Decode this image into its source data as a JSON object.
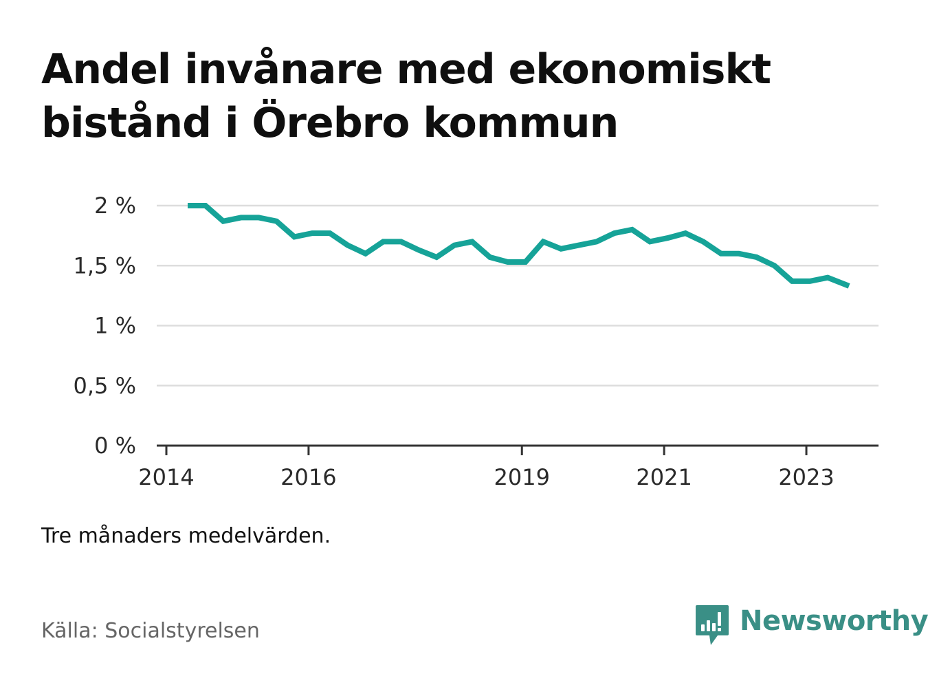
{
  "title": "Andel invånare med ekonomiskt bistånd i Örebro kommun",
  "note": "Tre månaders medelvärden.",
  "source": "Källa: Socialstyrelsen",
  "brand": {
    "name": "Newsworthy",
    "icon": "bar-chart-speech-bubble-icon",
    "color": "#3a8f86"
  },
  "chart_data": {
    "type": "line",
    "title": "Andel invånare med ekonomiskt bistånd i Örebro kommun",
    "xlabel": "",
    "ylabel": "",
    "x_ticks": [
      2014,
      2016,
      2019,
      2021,
      2023
    ],
    "x_tick_labels": [
      "2014",
      "2016",
      "2019",
      "2021",
      "2023"
    ],
    "xlim": [
      2014.0,
      2024.15
    ],
    "ylim": [
      0,
      2.0
    ],
    "y_ticks": [
      0,
      0.5,
      1,
      1.5,
      2
    ],
    "y_tick_labels": [
      "0 %",
      "0,5 %",
      "1 %",
      "1,5 %",
      "2 %"
    ],
    "grid": true,
    "line_color": "#16a398",
    "series": [
      {
        "x": [
          2014.3,
          2014.55,
          2014.8,
          2015.05,
          2015.3,
          2015.55,
          2015.8,
          2016.05,
          2016.3,
          2016.55,
          2016.8,
          2017.05,
          2017.3,
          2017.55,
          2017.8,
          2018.05,
          2018.3,
          2018.55,
          2018.8,
          2019.05,
          2019.3,
          2019.55,
          2019.8,
          2020.05,
          2020.3,
          2020.55,
          2020.8,
          2021.05,
          2021.3,
          2021.55,
          2021.8,
          2022.05,
          2022.3,
          2022.55,
          2022.8,
          2023.05,
          2023.3,
          2023.6
        ],
        "values": [
          2.0,
          2.0,
          1.87,
          1.9,
          1.9,
          1.87,
          1.74,
          1.77,
          1.77,
          1.67,
          1.6,
          1.7,
          1.7,
          1.63,
          1.57,
          1.67,
          1.7,
          1.57,
          1.53,
          1.53,
          1.7,
          1.64,
          1.67,
          1.7,
          1.77,
          1.8,
          1.7,
          1.73,
          1.77,
          1.7,
          1.6,
          1.6,
          1.57,
          1.5,
          1.37,
          1.37,
          1.4,
          1.33
        ]
      }
    ]
  }
}
